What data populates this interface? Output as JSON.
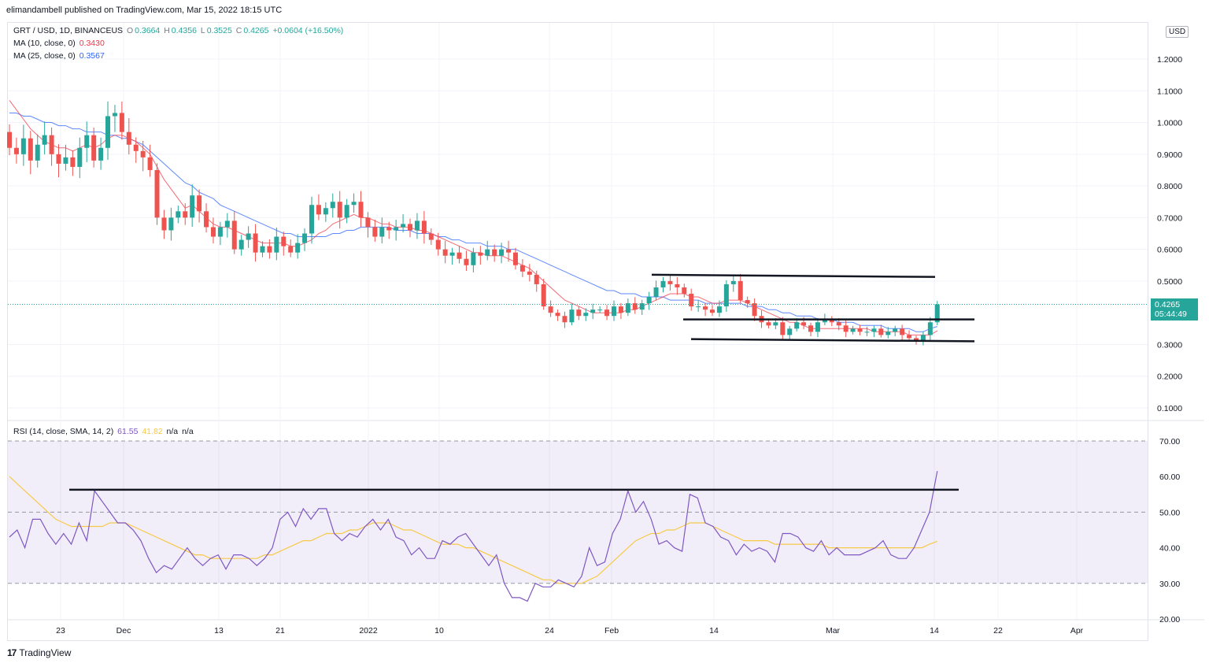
{
  "header": {
    "published": "elimandambell published on TradingView.com, Mar 15, 2022 18:15 UTC"
  },
  "legend": {
    "symbol": "GRT / USD, 1D, BINANCEUS",
    "o_label": "O",
    "o": "0.3664",
    "h_label": "H",
    "h": "0.4356",
    "l_label": "L",
    "l": "0.3525",
    "c_label": "C",
    "c": "0.4265",
    "change": "+0.0604 (+16.50%)",
    "ma10_label": "MA (10, close, 0)",
    "ma10": "0.3430",
    "ma25_label": "MA (25, close, 0)",
    "ma25": "0.3567",
    "rsi_label": "RSI (14, close, SMA, 14, 2)",
    "rsi": "61.55",
    "rsi_ma": "41.82",
    "na1": "n/a",
    "na2": "n/a"
  },
  "price_axis": {
    "unit": "USD",
    "ticks": [
      "1.2000",
      "1.1000",
      "1.0000",
      "0.9000",
      "0.8000",
      "0.7000",
      "0.6000",
      "0.5000",
      "0.3000",
      "0.2000",
      "0.1000"
    ],
    "last_price": "0.4265",
    "countdown": "05:44:49"
  },
  "rsi_axis": {
    "ticks": [
      "70.00",
      "60.00",
      "50.00",
      "40.00",
      "30.00",
      "20.00"
    ]
  },
  "time_axis": {
    "labels": [
      "23",
      "Dec",
      "13",
      "21",
      "2022",
      "10",
      "24",
      "Feb",
      "14",
      "Mar",
      "14",
      "22",
      "Apr"
    ]
  },
  "footer": {
    "brand": "TradingView"
  },
  "colors": {
    "up": "#26a69a",
    "down": "#ef5350",
    "ma10": "#f23645",
    "ma25": "#2962ff",
    "rsi": "#7e57c2",
    "rsi_ma": "#f7c948",
    "drawing": "#131722"
  },
  "chart_data": [
    {
      "type": "candlestick",
      "series": [
        {
          "name": "GRT / USD",
          "closes": [
            0.92,
            0.9,
            0.95,
            0.88,
            0.93,
            0.96,
            0.9,
            0.87,
            0.89,
            0.86,
            0.92,
            0.96,
            0.88,
            0.92,
            1.02,
            1.03,
            0.97,
            0.93,
            0.91,
            0.89,
            0.85,
            0.7,
            0.66,
            0.7,
            0.72,
            0.7,
            0.77,
            0.72,
            0.67,
            0.64,
            0.67,
            0.69,
            0.6,
            0.63,
            0.65,
            0.59,
            0.61,
            0.59,
            0.64,
            0.61,
            0.59,
            0.62,
            0.65,
            0.74,
            0.71,
            0.73,
            0.75,
            0.7,
            0.74,
            0.75,
            0.7,
            0.67,
            0.64,
            0.67,
            0.66,
            0.67,
            0.68,
            0.66,
            0.69,
            0.65,
            0.63,
            0.6,
            0.58,
            0.59,
            0.57,
            0.55,
            0.59,
            0.58,
            0.6,
            0.58,
            0.6,
            0.59,
            0.55,
            0.53,
            0.52,
            0.49,
            0.42,
            0.4,
            0.39,
            0.37,
            0.41,
            0.39,
            0.4,
            0.41,
            0.41,
            0.39,
            0.42,
            0.4,
            0.43,
            0.41,
            0.43,
            0.45,
            0.48,
            0.5,
            0.49,
            0.48,
            0.46,
            0.42,
            0.42,
            0.41,
            0.4,
            0.42,
            0.49,
            0.5,
            0.44,
            0.43,
            0.39,
            0.37,
            0.36,
            0.37,
            0.33,
            0.35,
            0.37,
            0.36,
            0.34,
            0.37,
            0.38,
            0.37,
            0.36,
            0.34,
            0.35,
            0.34,
            0.34,
            0.35,
            0.33,
            0.34,
            0.35,
            0.33,
            0.32,
            0.31,
            0.33,
            0.37,
            0.4265
          ]
        },
        {
          "name": "MA (10, close, 0)",
          "values": [
            1.07,
            1.04,
            1.01,
            0.98,
            0.96,
            0.94,
            0.93,
            0.92,
            0.92,
            0.91,
            0.92,
            0.93,
            0.92,
            0.93,
            0.95,
            0.96,
            0.96,
            0.95,
            0.94,
            0.92,
            0.9,
            0.86,
            0.82,
            0.79,
            0.76,
            0.73,
            0.74,
            0.72,
            0.7,
            0.68,
            0.67,
            0.67,
            0.66,
            0.65,
            0.64,
            0.63,
            0.62,
            0.62,
            0.62,
            0.62,
            0.61,
            0.61,
            0.62,
            0.63,
            0.65,
            0.66,
            0.68,
            0.69,
            0.7,
            0.71,
            0.7,
            0.7,
            0.69,
            0.68,
            0.68,
            0.67,
            0.67,
            0.67,
            0.66,
            0.66,
            0.65,
            0.64,
            0.63,
            0.62,
            0.61,
            0.6,
            0.59,
            0.59,
            0.58,
            0.58,
            0.58,
            0.57,
            0.56,
            0.55,
            0.54,
            0.52,
            0.5,
            0.48,
            0.46,
            0.44,
            0.43,
            0.42,
            0.41,
            0.4,
            0.4,
            0.4,
            0.4,
            0.4,
            0.41,
            0.41,
            0.42,
            0.43,
            0.44,
            0.45,
            0.46,
            0.46,
            0.46,
            0.45,
            0.45,
            0.44,
            0.43,
            0.43,
            0.44,
            0.44,
            0.44,
            0.43,
            0.42,
            0.41,
            0.4,
            0.39,
            0.38,
            0.37,
            0.37,
            0.36,
            0.35,
            0.35,
            0.35,
            0.35,
            0.35,
            0.35,
            0.35,
            0.35,
            0.35,
            0.34,
            0.34,
            0.34,
            0.34,
            0.34,
            0.33,
            0.33,
            0.33,
            0.33,
            0.343
          ]
        },
        {
          "name": "MA (25, close, 0)",
          "values": [
            1.03,
            1.03,
            1.02,
            1.02,
            1.01,
            1.0,
            1.0,
            0.99,
            0.99,
            0.98,
            0.98,
            0.97,
            0.97,
            0.97,
            0.96,
            0.96,
            0.95,
            0.95,
            0.94,
            0.93,
            0.91,
            0.89,
            0.87,
            0.85,
            0.83,
            0.81,
            0.8,
            0.78,
            0.77,
            0.76,
            0.74,
            0.73,
            0.72,
            0.71,
            0.7,
            0.69,
            0.68,
            0.67,
            0.66,
            0.65,
            0.65,
            0.64,
            0.64,
            0.64,
            0.64,
            0.64,
            0.65,
            0.65,
            0.66,
            0.66,
            0.67,
            0.67,
            0.67,
            0.67,
            0.67,
            0.66,
            0.66,
            0.66,
            0.65,
            0.65,
            0.65,
            0.64,
            0.64,
            0.63,
            0.63,
            0.62,
            0.62,
            0.62,
            0.61,
            0.61,
            0.61,
            0.6,
            0.6,
            0.59,
            0.58,
            0.57,
            0.56,
            0.55,
            0.54,
            0.53,
            0.52,
            0.51,
            0.5,
            0.49,
            0.48,
            0.47,
            0.47,
            0.46,
            0.46,
            0.46,
            0.45,
            0.45,
            0.45,
            0.45,
            0.44,
            0.44,
            0.44,
            0.44,
            0.44,
            0.43,
            0.43,
            0.43,
            0.43,
            0.43,
            0.43,
            0.42,
            0.42,
            0.42,
            0.41,
            0.41,
            0.4,
            0.4,
            0.39,
            0.39,
            0.39,
            0.38,
            0.38,
            0.38,
            0.37,
            0.37,
            0.37,
            0.36,
            0.36,
            0.36,
            0.36,
            0.35,
            0.35,
            0.35,
            0.35,
            0.34,
            0.34,
            0.35,
            0.3567
          ]
        }
      ],
      "y_ticks": [
        "1.2000",
        "1.1000",
        "1.0000",
        "0.9000",
        "0.8000",
        "0.7000",
        "0.6000",
        "0.5000",
        "0.3000",
        "0.2000",
        "0.1000"
      ],
      "last_value": "0.4265",
      "grid": true
    },
    {
      "type": "line",
      "series": [
        {
          "name": "RSI",
          "values": [
            43,
            45,
            40,
            48,
            48,
            44,
            41,
            44,
            41,
            47,
            42,
            56,
            53,
            50,
            47,
            47,
            45,
            42,
            37,
            33,
            35,
            34,
            37,
            40,
            37,
            35,
            37,
            38,
            34,
            38,
            38,
            37,
            35,
            37,
            40,
            48,
            50,
            46,
            51,
            48,
            51,
            51,
            44,
            42,
            44,
            43,
            46,
            48,
            45,
            48,
            43,
            42,
            38,
            40,
            37,
            37,
            42,
            41,
            43,
            44,
            41,
            38,
            35,
            38,
            30,
            26,
            26,
            25,
            30,
            29,
            29,
            31,
            30,
            29,
            32,
            40,
            35,
            36,
            44,
            48,
            56,
            50,
            53,
            48,
            41,
            42,
            40,
            39,
            55,
            54,
            47,
            46,
            43,
            42,
            38,
            41,
            39,
            40,
            39,
            36,
            44,
            44,
            43,
            40,
            39,
            42,
            38,
            40,
            38,
            38,
            38,
            39,
            40,
            42,
            38,
            37,
            37,
            40,
            45,
            50,
            61.55
          ]
        },
        {
          "name": "RSI MA",
          "values": [
            60,
            58,
            56,
            54,
            52,
            50,
            48,
            47,
            46,
            46,
            46,
            46,
            46,
            47,
            47,
            47,
            46,
            45,
            44,
            43,
            42,
            41,
            40,
            39,
            38,
            38,
            37,
            37,
            37,
            37,
            37,
            37,
            37,
            38,
            38,
            39,
            40,
            41,
            42,
            42,
            43,
            44,
            44,
            44,
            45,
            45,
            46,
            47,
            47,
            47,
            46,
            45,
            45,
            44,
            43,
            42,
            41,
            41,
            41,
            40,
            40,
            39,
            38,
            37,
            36,
            35,
            34,
            33,
            32,
            31,
            31,
            30,
            30,
            30,
            30,
            31,
            32,
            34,
            36,
            38,
            40,
            42,
            43,
            44,
            44,
            45,
            45,
            46,
            47,
            47,
            47,
            46,
            45,
            44,
            43,
            42,
            42,
            42,
            42,
            41,
            41,
            41,
            41,
            41,
            41,
            41,
            40,
            40,
            40,
            40,
            40,
            40,
            40,
            40,
            40,
            40,
            40,
            40,
            40,
            41,
            41.82
          ]
        }
      ],
      "y_ticks": [
        "70.00",
        "60.00",
        "50.00",
        "40.00",
        "30.00",
        "20.00"
      ],
      "ylim": [
        20,
        70
      ],
      "band": [
        30,
        70
      ]
    }
  ]
}
